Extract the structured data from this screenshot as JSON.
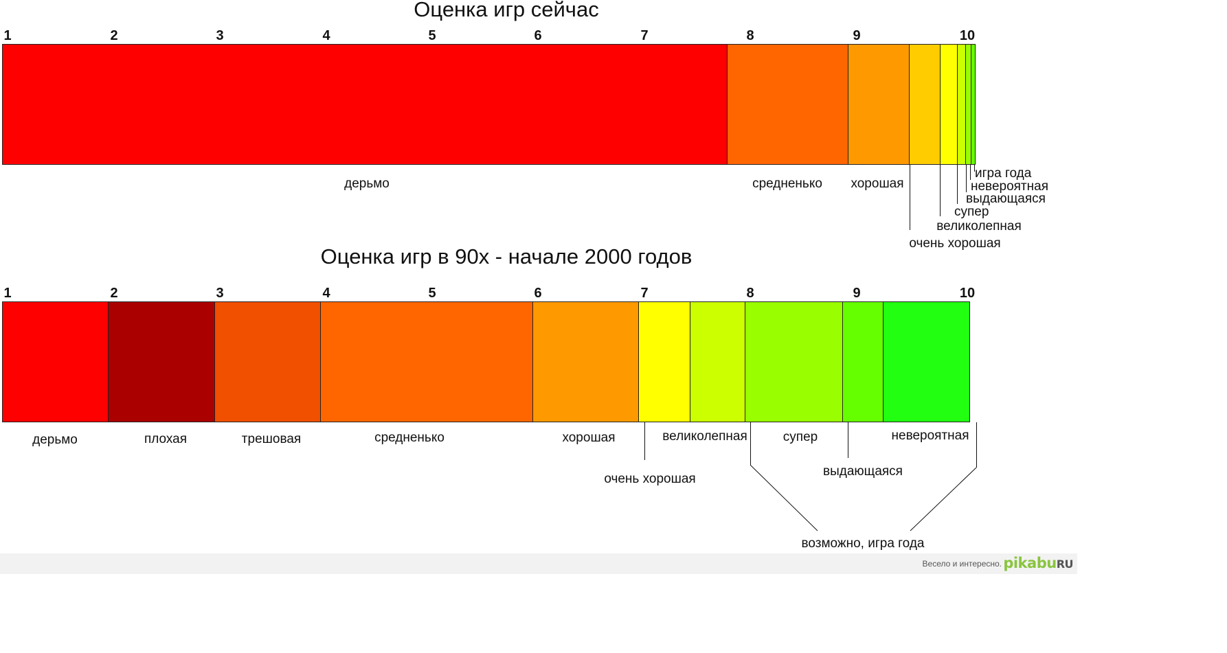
{
  "top": {
    "title": "Оценка игр сейчас",
    "ticks": [
      "1",
      "2",
      "3",
      "4",
      "5",
      "6",
      "7",
      "8",
      "9",
      "10"
    ],
    "segments": [
      {
        "from": 1.0,
        "to": 7.83,
        "color": "#ff0000"
      },
      {
        "from": 7.83,
        "to": 8.97,
        "color": "#ff6600"
      },
      {
        "from": 8.97,
        "to": 9.55,
        "color": "#ff9900"
      },
      {
        "from": 9.55,
        "to": 9.84,
        "color": "#ffcc00"
      },
      {
        "from": 9.84,
        "to": 10.0,
        "color": "#ffff00"
      },
      {
        "from": 10.0,
        "to": 10.08,
        "color": "#ccff00"
      },
      {
        "from": 10.08,
        "to": 10.13,
        "color": "#99ff00"
      },
      {
        "from": 10.13,
        "to": 10.17,
        "color": "#66ff00"
      }
    ],
    "labels": {
      "l0": "дерьмо",
      "l1": "средненько",
      "l2": "хорошая",
      "l3": "очень хорошая",
      "l4": "великолепная",
      "l5": "супер",
      "l6": "выдающаяся",
      "l7": "невероятная",
      "l8": "игра года"
    }
  },
  "bottom": {
    "title": "Оценка игр в 90х - начале 2000 годов",
    "ticks": [
      "1",
      "2",
      "3",
      "4",
      "5",
      "6",
      "7",
      "8",
      "9",
      "10"
    ],
    "segments": [
      {
        "from": 1.0,
        "to": 2.0,
        "color": "#ff0000"
      },
      {
        "from": 2.0,
        "to": 3.0,
        "color": "#aa0000"
      },
      {
        "from": 3.0,
        "to": 4.0,
        "color": "#f05000"
      },
      {
        "from": 4.0,
        "to": 6.0,
        "color": "#ff6600"
      },
      {
        "from": 6.0,
        "to": 7.0,
        "color": "#ff9900"
      },
      {
        "from": 7.0,
        "to": 7.48,
        "color": "#ffff00"
      },
      {
        "from": 7.48,
        "to": 8.0,
        "color": "#ccff00"
      },
      {
        "from": 8.0,
        "to": 8.92,
        "color": "#99ff00"
      },
      {
        "from": 8.92,
        "to": 9.3,
        "color": "#66ff00"
      },
      {
        "from": 9.3,
        "to": 10.12,
        "color": "#22ff11"
      }
    ],
    "labels": {
      "l0": "дерьмо",
      "l1": "плохая",
      "l2": "трешовая",
      "l3": "средненько",
      "l4": "хорошая",
      "l5": "очень хорошая",
      "l6": "великолепная",
      "l7": "супер",
      "l8": "выдающаяся",
      "l9": "невероятная",
      "l10": "возможно, игра года"
    }
  },
  "footer": {
    "slogan": "Весело и интересно.",
    "logo_main": "pikabu",
    "logo_tld": "RU"
  }
}
